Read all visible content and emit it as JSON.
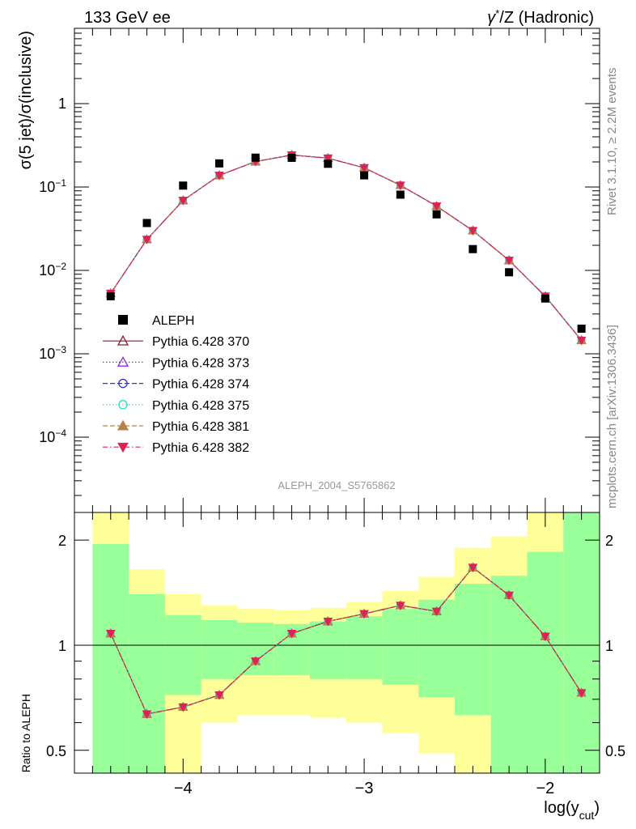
{
  "header": {
    "left": "133 GeV ee",
    "right_gamma": "γ",
    "right_star": "*",
    "right_rest": "/Z (Hadronic)"
  },
  "side_labels": {
    "rivet": "Rivet 3.1.10, ≥ 2.2M events",
    "mcplots": "mcplots.cern.ch [arXiv:1306.3436]"
  },
  "watermark": "ALEPH_2004_S5765862",
  "colors": {
    "data": "#000000",
    "band_inner": "#99ff99",
    "band_outer": "#ffff99",
    "s370": "#8b1a2a",
    "s373": "#8a2be2",
    "s374": "#3333cc",
    "s375": "#22ddcc",
    "s381": "#b8824a",
    "s382": "#dd2255"
  },
  "chart_data": [
    {
      "type": "scatter",
      "name": "main",
      "ylabel": "σ(5 jet)/σ(inclusive)",
      "xlabel": "log(y",
      "xlabel_sub": "cut",
      "xlabel_close": ")",
      "yscale": "log",
      "xlim": [
        -4.6,
        -1.7
      ],
      "ylim": [
        1.25e-05,
        8
      ],
      "ytick_values": [
        0.0001,
        0.001,
        0.01,
        0.1,
        1
      ],
      "ytick_mant": [
        "10",
        "10",
        "10",
        "10",
        "1"
      ],
      "ytick_exp": [
        "−4",
        "−3",
        "−2",
        "−1",
        ""
      ],
      "x": [
        -4.4,
        -4.2,
        -4.0,
        -3.8,
        -3.6,
        -3.4,
        -3.2,
        -3.0,
        -2.8,
        -2.6,
        -2.4,
        -2.2,
        -2.0,
        -1.8
      ],
      "data": {
        "name": "ALEPH",
        "values": [
          0.0049,
          0.037,
          0.104,
          0.192,
          0.225,
          0.224,
          0.19,
          0.138,
          0.081,
          0.047,
          0.018,
          0.0095,
          0.0046,
          0.002
        ]
      },
      "series": [
        {
          "name": "Pythia 6.428 370",
          "style": "solid",
          "marker": "triangle-open",
          "color": "#8b1a2a",
          "values": [
            0.0053,
            0.0235,
            0.069,
            0.138,
            0.202,
            0.242,
            0.222,
            0.17,
            0.105,
            0.059,
            0.03,
            0.0132,
            0.0049,
            0.00145
          ]
        },
        {
          "name": "Pythia 6.428 373",
          "style": "dotted",
          "marker": "triangle-open",
          "color": "#8a2be2",
          "values": [
            0.0053,
            0.0235,
            0.069,
            0.138,
            0.202,
            0.242,
            0.222,
            0.17,
            0.105,
            0.059,
            0.03,
            0.0132,
            0.0049,
            0.00145
          ]
        },
        {
          "name": "Pythia 6.428 374",
          "style": "dashed",
          "marker": "circle-open",
          "color": "#3333cc",
          "values": [
            0.0053,
            0.0235,
            0.069,
            0.138,
            0.202,
            0.242,
            0.222,
            0.17,
            0.105,
            0.059,
            0.03,
            0.0132,
            0.0049,
            0.00145
          ]
        },
        {
          "name": "Pythia 6.428 375",
          "style": "dotted",
          "marker": "circle-open",
          "color": "#22ddcc",
          "values": [
            0.0053,
            0.0235,
            0.069,
            0.138,
            0.202,
            0.242,
            0.222,
            0.17,
            0.105,
            0.059,
            0.03,
            0.0132,
            0.0049,
            0.00145
          ]
        },
        {
          "name": "Pythia 6.428 381",
          "style": "dashed",
          "marker": "triangle-filled",
          "color": "#b8824a",
          "values": [
            0.0053,
            0.0235,
            0.069,
            0.138,
            0.202,
            0.242,
            0.222,
            0.17,
            0.105,
            0.059,
            0.03,
            0.0132,
            0.0049,
            0.00145
          ]
        },
        {
          "name": "Pythia 6.428 382",
          "style": "dashdot",
          "marker": "triangledown-filled",
          "color": "#dd2255",
          "values": [
            0.0053,
            0.0235,
            0.069,
            0.138,
            0.202,
            0.242,
            0.222,
            0.17,
            0.105,
            0.059,
            0.03,
            0.0132,
            0.0049,
            0.00145
          ]
        }
      ]
    },
    {
      "type": "scatter",
      "name": "ratio",
      "ylabel": "Ratio to ALEPH",
      "yscale": "log",
      "ylim": [
        0.43,
        2.4
      ],
      "ytick_values": [
        0.5,
        1,
        2
      ],
      "ytick_labels": [
        "0.5",
        "1",
        "2"
      ],
      "xtick_values": [
        -4,
        -3,
        -2
      ],
      "xtick_labels": [
        "−4",
        "−3",
        "−2"
      ],
      "reference": 1,
      "x": [
        -4.4,
        -4.2,
        -4.0,
        -3.8,
        -3.6,
        -3.4,
        -3.2,
        -3.0,
        -2.8,
        -2.6,
        -2.4,
        -2.2,
        -2.0,
        -1.8
      ],
      "bin_edges": [
        -4.5,
        -4.3,
        -4.1,
        -3.9,
        -3.7,
        -3.5,
        -3.3,
        -3.1,
        -2.9,
        -2.7,
        -2.5,
        -2.3,
        -2.1,
        -1.9,
        -1.7
      ],
      "band_inner": {
        "low": [
          0.43,
          0.43,
          0.72,
          0.8,
          0.82,
          0.82,
          0.8,
          0.8,
          0.77,
          0.71,
          0.63,
          0.43,
          0.43,
          0.43
        ],
        "high": [
          1.95,
          1.4,
          1.22,
          1.18,
          1.16,
          1.15,
          1.17,
          1.21,
          1.27,
          1.35,
          1.5,
          1.58,
          1.85,
          2.4
        ]
      },
      "band_outer": {
        "low": [
          0.43,
          0.73,
          0.43,
          0.6,
          0.63,
          0.63,
          0.62,
          0.6,
          0.56,
          0.49,
          0.43,
          0.43,
          0.43,
          0.43
        ],
        "high": [
          2.4,
          1.65,
          1.4,
          1.3,
          1.27,
          1.26,
          1.28,
          1.33,
          1.43,
          1.57,
          1.9,
          2.05,
          2.4,
          2.4
        ]
      },
      "series_values": [
        1.08,
        0.635,
        0.665,
        0.72,
        0.9,
        1.08,
        1.17,
        1.23,
        1.3,
        1.25,
        1.67,
        1.39,
        1.06,
        0.73
      ]
    }
  ]
}
